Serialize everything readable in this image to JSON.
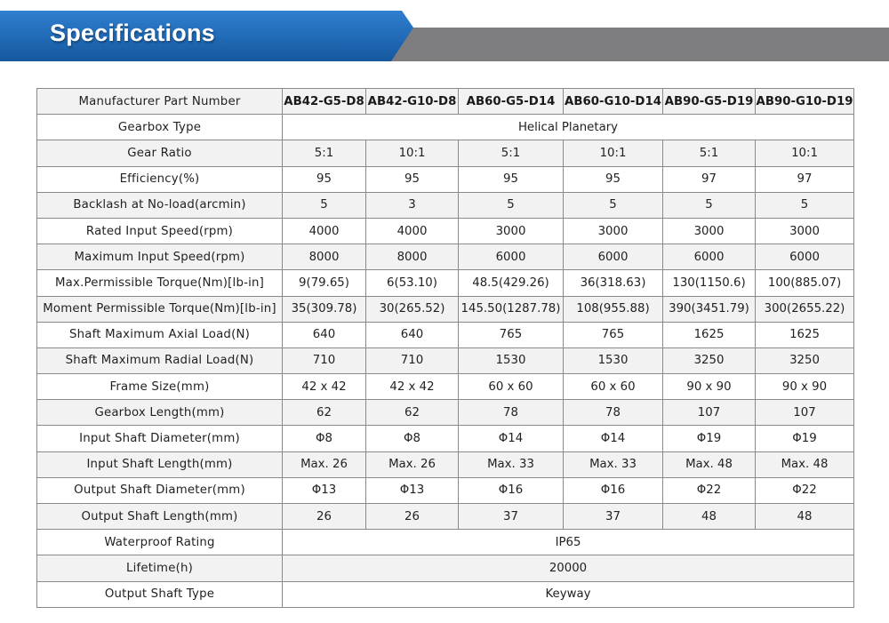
{
  "header": {
    "title": "Specifications",
    "colors": {
      "blue": "#1a63b5",
      "gray": "#7e7e80"
    }
  },
  "table": {
    "header_label": "Manufacturer Part Number",
    "models": [
      "AB42-G5-D8",
      "AB42-G10-D8",
      "AB60-G5-D14",
      "AB60-G10-D14",
      "AB90-G5-D19",
      "AB90-G10-D19"
    ],
    "rows": [
      {
        "label": "Gearbox Type",
        "span": "Helical Planetary"
      },
      {
        "label": "Gear Ratio",
        "values": [
          "5:1",
          "10:1",
          "5:1",
          "10:1",
          "5:1",
          "10:1"
        ]
      },
      {
        "label": "Efficiency(%)",
        "values": [
          "95",
          "95",
          "95",
          "95",
          "97",
          "97"
        ]
      },
      {
        "label": "Backlash at No-load(arcmin)",
        "values": [
          "5",
          "3",
          "5",
          "5",
          "5",
          "5"
        ]
      },
      {
        "label": "Rated Input Speed(rpm)",
        "values": [
          "4000",
          "4000",
          "3000",
          "3000",
          "3000",
          "3000"
        ]
      },
      {
        "label": "Maximum Input Speed(rpm)",
        "values": [
          "8000",
          "8000",
          "6000",
          "6000",
          "6000",
          "6000"
        ]
      },
      {
        "label": "Max.Permissible Torque(Nm)[lb-in]",
        "values": [
          "9(79.65)",
          "6(53.10)",
          "48.5(429.26)",
          "36(318.63)",
          "130(1150.6)",
          "100(885.07)"
        ]
      },
      {
        "label": "Moment Permissible Torque(Nm)[lb-in]",
        "values": [
          "35(309.78)",
          "30(265.52)",
          "145.50(1287.78)",
          "108(955.88)",
          "390(3451.79)",
          "300(2655.22)"
        ]
      },
      {
        "label": "Shaft Maximum Axial Load(N)",
        "values": [
          "640",
          "640",
          "765",
          "765",
          "1625",
          "1625"
        ]
      },
      {
        "label": "Shaft Maximum Radial Load(N)",
        "values": [
          "710",
          "710",
          "1530",
          "1530",
          "3250",
          "3250"
        ]
      },
      {
        "label": "Frame Size(mm)",
        "values": [
          "42 x 42",
          "42 x 42",
          "60 x 60",
          "60 x 60",
          "90 x 90",
          "90 x 90"
        ]
      },
      {
        "label": "Gearbox Length(mm)",
        "values": [
          "62",
          "62",
          "78",
          "78",
          "107",
          "107"
        ]
      },
      {
        "label": "Input Shaft Diameter(mm)",
        "values": [
          "Φ8",
          "Φ8",
          "Φ14",
          "Φ14",
          "Φ19",
          "Φ19"
        ]
      },
      {
        "label": "Input Shaft Length(mm)",
        "values": [
          "Max. 26",
          "Max. 26",
          "Max. 33",
          "Max. 33",
          "Max. 48",
          "Max. 48"
        ]
      },
      {
        "label": "Output Shaft Diameter(mm)",
        "values": [
          "Φ13",
          "Φ13",
          "Φ16",
          "Φ16",
          "Φ22",
          "Φ22"
        ]
      },
      {
        "label": "Output Shaft Length(mm)",
        "values": [
          "26",
          "26",
          "37",
          "37",
          "48",
          "48"
        ]
      },
      {
        "label": "Waterproof Rating",
        "span": "IP65"
      },
      {
        "label": "Lifetime(h)",
        "span": "20000"
      },
      {
        "label": "Output Shaft Type",
        "span": "Keyway"
      }
    ]
  }
}
